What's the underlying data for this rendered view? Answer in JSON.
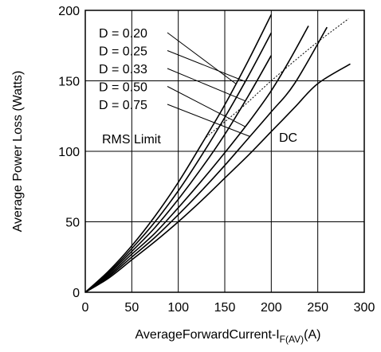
{
  "chart_data": {
    "type": "line",
    "title": "",
    "xlabel": "AverageForwardCurrent-I",
    "xlabel_subscript": "F(AV)",
    "xlabel_suffix": "(A)",
    "ylabel": "Average Power Loss (Watts)",
    "xlim": [
      0,
      300
    ],
    "ylim": [
      0,
      200
    ],
    "xticks": [
      0,
      50,
      100,
      150,
      200,
      250,
      300
    ],
    "yticks": [
      0,
      50,
      100,
      150,
      200
    ],
    "grid": true,
    "series": [
      {
        "name": "D = 0.20",
        "x": [
          0,
          25,
          50,
          75,
          100,
          125,
          150,
          175,
          200
        ],
        "y": [
          0,
          15,
          33,
          54,
          78,
          105,
          133,
          164,
          197
        ]
      },
      {
        "name": "D = 0.25",
        "x": [
          0,
          25,
          50,
          75,
          100,
          125,
          150,
          175,
          200
        ],
        "y": [
          0,
          14,
          31,
          50,
          72,
          97,
          124,
          153,
          184
        ]
      },
      {
        "name": "D = 0.33",
        "x": [
          0,
          25,
          50,
          75,
          100,
          125,
          150,
          175,
          200
        ],
        "y": [
          0,
          13,
          29,
          46,
          66,
          88,
          112,
          139,
          168
        ]
      },
      {
        "name": "D = 0.50",
        "x": [
          0,
          25,
          50,
          75,
          100,
          125,
          150,
          175,
          200,
          220,
          240
        ],
        "y": [
          0,
          12,
          27,
          42,
          60,
          79,
          99,
          120,
          143,
          165,
          189
        ]
      },
      {
        "name": "D = 0.75",
        "x": [
          0,
          25,
          50,
          75,
          100,
          125,
          150,
          175,
          200,
          225,
          260
        ],
        "y": [
          0,
          11,
          25,
          39,
          55,
          72,
          90,
          109,
          128,
          148,
          188
        ]
      },
      {
        "name": "DC",
        "x": [
          0,
          25,
          50,
          75,
          100,
          125,
          150,
          175,
          200,
          225,
          250,
          285
        ],
        "y": [
          0,
          10,
          23,
          36,
          50,
          65,
          81,
          97,
          114,
          131,
          148,
          162
        ]
      }
    ],
    "rms_limit": {
      "x": [
        130,
        170,
        200,
        245,
        283
      ],
      "y": [
        110,
        132,
        150,
        175,
        194
      ]
    },
    "annotations": {
      "rms_label": "RMS Limit",
      "dc_label": "DC",
      "d_labels": [
        "D = 0.20",
        "D = 0.25",
        "D = 0.33",
        "D = 0.50",
        "D = 0.75"
      ]
    }
  }
}
